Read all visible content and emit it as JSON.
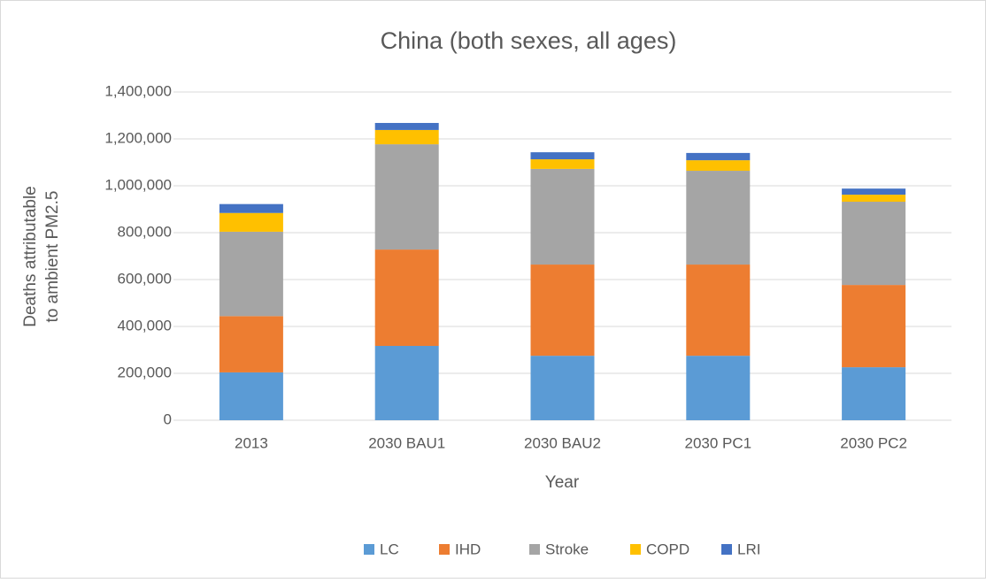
{
  "chart_data": {
    "type": "stacked_bar",
    "title": "China (both sexes, all ages)",
    "x_label": "Year",
    "y_label": [
      "Deaths attributable",
      "to ambient PM2.5"
    ],
    "categories": [
      "2013",
      "2030 BAU1",
      "2030 BAU2",
      "2030 PC1",
      "2030 PC2"
    ],
    "series": [
      {
        "name": "LC",
        "color": "#5b9bd5",
        "values": [
          204000,
          317000,
          275000,
          275000,
          226000
        ]
      },
      {
        "name": "IHD",
        "color": "#ed7d31",
        "values": [
          240000,
          411000,
          389000,
          389000,
          351000
        ]
      },
      {
        "name": "Stroke",
        "color": "#a5a5a5",
        "values": [
          360000,
          449000,
          408000,
          400000,
          355000
        ]
      },
      {
        "name": "COPD",
        "color": "#ffc000",
        "values": [
          80000,
          61000,
          41000,
          45000,
          30000
        ]
      },
      {
        "name": "LRI",
        "color": "#4472c4",
        "values": [
          38000,
          30000,
          30000,
          31000,
          26000
        ]
      }
    ],
    "ylim": [
      0,
      1400000
    ],
    "yticks": [
      0,
      {
        "value": 200000,
        "label": "200,000"
      },
      {
        "value": 400000,
        "label": "400,000"
      },
      {
        "value": 600000,
        "label": "600,000"
      },
      {
        "value": 800000,
        "label": "800,000"
      },
      {
        "value": 1000000,
        "label": "1,000,000"
      },
      {
        "value": 1200000,
        "label": "1,200,000"
      },
      {
        "value": 1400000,
        "label": "1,400,000"
      }
    ],
    "grid": true,
    "legend": "bottom"
  }
}
